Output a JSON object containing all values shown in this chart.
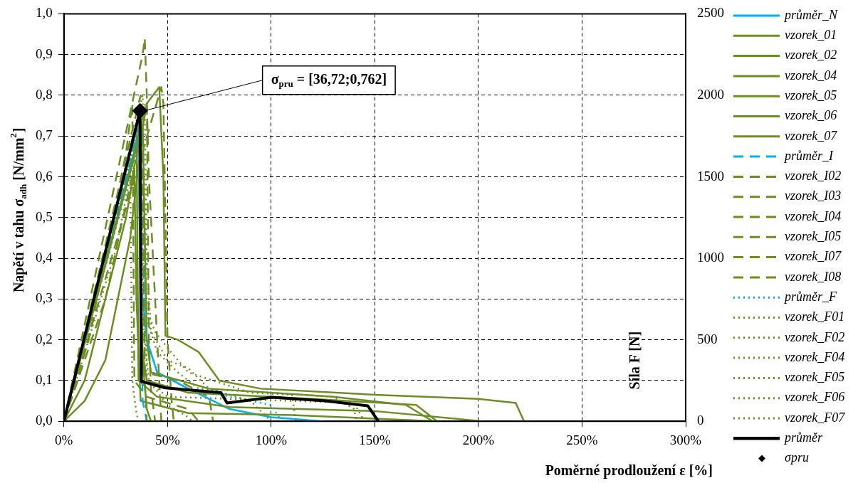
{
  "chart_data": {
    "type": "line",
    "xlabel": "Poměrné prodloužení ε [%]",
    "ylabel": "Napětí v tahu σ$_{adh}$ [N/mm$^{2}$]",
    "y2label": "Síla F [N]",
    "xlim": [
      0,
      300
    ],
    "xticks": [
      {
        "value": 0,
        "label": "0%"
      },
      {
        "value": 50,
        "label": "50%"
      },
      {
        "value": 100,
        "label": "100%"
      },
      {
        "value": 150,
        "label": "150%"
      },
      {
        "value": 200,
        "label": "200%"
      },
      {
        "value": 250,
        "label": "250%"
      },
      {
        "value": 300,
        "label": "300%"
      }
    ],
    "ylim": [
      0,
      1
    ],
    "yticks": [
      {
        "value": 0,
        "label": "0,0"
      },
      {
        "value": 0.1,
        "label": "0,1"
      },
      {
        "value": 0.2,
        "label": "0,2"
      },
      {
        "value": 0.3,
        "label": "0,3"
      },
      {
        "value": 0.4,
        "label": "0,4"
      },
      {
        "value": 0.5,
        "label": "0,5"
      },
      {
        "value": 0.6,
        "label": "0,6"
      },
      {
        "value": 0.7,
        "label": "0,7"
      },
      {
        "value": 0.8,
        "label": "0,8"
      },
      {
        "value": 0.9,
        "label": "0,9"
      },
      {
        "value": 1,
        "label": "1,0"
      }
    ],
    "y2lim": [
      0,
      2500
    ],
    "y2ticks": [
      0,
      500,
      1000,
      1500,
      2000,
      2500
    ],
    "grid": true,
    "legend": "right",
    "marker": "none",
    "annotations": [
      {
        "text": "σ$_{pru}$ = [36,72;0,762]",
        "x": 36.72,
        "y": 0.762
      }
    ],
    "series": [
      {
        "name": "průměr_N",
        "color": "#00b0f0",
        "line_style": "solid",
        "x": [
          0,
          36,
          37,
          40,
          45,
          60,
          80,
          100,
          125
        ],
        "values": [
          0,
          0.7,
          0.35,
          0.2,
          0.12,
          0.08,
          0.03,
          0.01,
          0
        ]
      },
      {
        "name": "vzorek_01",
        "color": "#6b8e23",
        "line_style": "solid",
        "x": [
          0,
          10,
          20,
          32,
          38,
          40,
          43,
          46,
          48,
          49,
          55,
          65,
          75,
          95,
          150,
          200,
          218,
          222
        ],
        "values": [
          0,
          0.05,
          0.15,
          0.45,
          0.72,
          0.78,
          0.8,
          0.82,
          0.6,
          0.21,
          0.2,
          0.17,
          0.1,
          0.08,
          0.065,
          0.055,
          0.045,
          0
        ]
      },
      {
        "name": "vzorek_02",
        "color": "#6b8e23",
        "line_style": "solid",
        "x": [
          0,
          36,
          37,
          40,
          60,
          120,
          170,
          180
        ],
        "values": [
          0,
          0.75,
          0.2,
          0.1,
          0.07,
          0.055,
          0.04,
          0
        ]
      },
      {
        "name": "vzorek_04",
        "color": "#6b8e23",
        "line_style": "solid",
        "x": [
          0,
          33,
          35,
          36,
          45,
          80,
          150,
          202
        ],
        "values": [
          0,
          0.68,
          0.72,
          0.1,
          0.06,
          0.035,
          0.025,
          0
        ]
      },
      {
        "name": "vzorek_05",
        "color": "#6b8e23",
        "line_style": "solid",
        "x": [
          0,
          10,
          30,
          34,
          35,
          37,
          60,
          110,
          180
        ],
        "values": [
          0,
          0.1,
          0.5,
          0.62,
          0.3,
          0.05,
          0.02,
          0.015,
          0
        ]
      },
      {
        "name": "vzorek_06",
        "color": "#6b8e23",
        "line_style": "solid",
        "x": [
          0,
          35,
          38,
          40,
          42,
          70,
          130,
          165,
          178
        ],
        "values": [
          0,
          0.68,
          0.72,
          0.2,
          0.12,
          0.08,
          0.06,
          0.04,
          0
        ]
      },
      {
        "name": "vzorek_07",
        "color": "#6b8e23",
        "line_style": "solid",
        "x": [
          0,
          34,
          36,
          38,
          40,
          42
        ],
        "values": [
          0,
          0.65,
          0.7,
          0.15,
          0.03,
          0
        ]
      },
      {
        "name": "průměr_I",
        "color": "#00b0f0",
        "line_style": "dashed",
        "x": [
          0,
          36,
          37,
          38,
          40
        ],
        "values": [
          0,
          0.72,
          0.3,
          0.05,
          0
        ]
      },
      {
        "name": "vzorek_I02",
        "color": "#6b8e23",
        "line_style": "dashed",
        "x": [
          0,
          38,
          39,
          40,
          41,
          42,
          44
        ],
        "values": [
          0,
          0.9,
          0.94,
          0.8,
          0.2,
          0.08,
          0
        ]
      },
      {
        "name": "vzorek_I03",
        "color": "#6b8e23",
        "line_style": "dashed",
        "x": [
          0,
          37,
          38,
          39,
          40
        ],
        "values": [
          0,
          0.8,
          0.6,
          0.1,
          0
        ]
      },
      {
        "name": "vzorek_I04",
        "color": "#6b8e23",
        "line_style": "dashed",
        "x": [
          0,
          12,
          30,
          33,
          34,
          40,
          60,
          65
        ],
        "values": [
          0,
          0.2,
          0.66,
          0.78,
          0.1,
          0.06,
          0.03,
          0
        ]
      },
      {
        "name": "vzorek_I05",
        "color": "#6b8e23",
        "line_style": "dashed",
        "x": [
          0,
          40,
          41,
          44,
          46,
          47
        ],
        "values": [
          0,
          0.78,
          0.6,
          0.3,
          0.1,
          0
        ]
      },
      {
        "name": "vzorek_I07",
        "color": "#6b8e23",
        "line_style": "dashed",
        "x": [
          0,
          47,
          48,
          49,
          50,
          52,
          53
        ],
        "values": [
          0,
          0.82,
          0.78,
          0.5,
          0.2,
          0.05,
          0
        ]
      },
      {
        "name": "vzorek_I08",
        "color": "#6b8e23",
        "line_style": "dashed",
        "x": [
          0,
          20,
          38,
          39,
          55,
          70,
          72
        ],
        "values": [
          0,
          0.3,
          0.72,
          0.12,
          0.1,
          0.06,
          0
        ]
      },
      {
        "name": "průměr_F",
        "color": "#00b0f0",
        "line_style": "dotted",
        "x": [
          0,
          37,
          38,
          40,
          45,
          60,
          90,
          100,
          105
        ],
        "values": [
          0,
          0.72,
          0.4,
          0.2,
          0.12,
          0.08,
          0.05,
          0.04,
          0
        ]
      },
      {
        "name": "vzorek_F01",
        "color": "#6b8e23",
        "line_style": "dotted",
        "x": [
          0,
          38,
          40,
          45,
          55,
          65,
          100,
          130,
          140,
          141
        ],
        "values": [
          0,
          0.8,
          0.25,
          0.17,
          0.12,
          0.08,
          0.07,
          0.06,
          0.03,
          0
        ]
      },
      {
        "name": "vzorek_F02",
        "color": "#6b8e23",
        "line_style": "dotted",
        "x": [
          0,
          36,
          38,
          44,
          50,
          60,
          90,
          110,
          112
        ],
        "values": [
          0,
          0.75,
          0.3,
          0.22,
          0.18,
          0.12,
          0.07,
          0.065,
          0
        ]
      },
      {
        "name": "vzorek_F04",
        "color": "#6b8e23",
        "line_style": "dotted",
        "x": [
          0,
          39,
          40,
          42,
          50,
          60,
          70,
          90,
          100
        ],
        "values": [
          0,
          0.78,
          0.4,
          0.22,
          0.15,
          0.13,
          0.08,
          0.05,
          0
        ]
      },
      {
        "name": "vzorek_F05",
        "color": "#6b8e23",
        "line_style": "dotted",
        "x": [
          0,
          37,
          38,
          41,
          50,
          60,
          62
        ],
        "values": [
          0,
          0.7,
          0.25,
          0.1,
          0.04,
          0.01,
          0
        ]
      },
      {
        "name": "vzorek_F06",
        "color": "#6b8e23",
        "line_style": "dotted",
        "x": [
          0,
          25,
          32,
          33,
          35,
          36
        ],
        "values": [
          0,
          0.42,
          0.6,
          0.1,
          0.02,
          0
        ]
      },
      {
        "name": "vzorek_F07",
        "color": "#6b8e23",
        "line_style": "dotted",
        "x": [
          0,
          38,
          39,
          40,
          50,
          80,
          110,
          140,
          145
        ],
        "values": [
          0,
          0.76,
          0.4,
          0.1,
          0.06,
          0.055,
          0.05,
          0.045,
          0
        ]
      },
      {
        "name": "průměr",
        "color": "#000000",
        "line_style": "solid",
        "x": [
          0,
          36.72,
          37.4,
          48.9,
          75.8,
          78.7,
          100.2,
          126,
          146.6,
          151.7
        ],
        "values": [
          0,
          0.762,
          0.098,
          0.082,
          0.07,
          0.045,
          0.059,
          0.05,
          0.038,
          0
        ]
      },
      {
        "name": "σpru",
        "type": "scatter",
        "marker": "diamond",
        "color": "#000000",
        "x": [
          36.72
        ],
        "values": [
          0.762
        ]
      }
    ]
  }
}
